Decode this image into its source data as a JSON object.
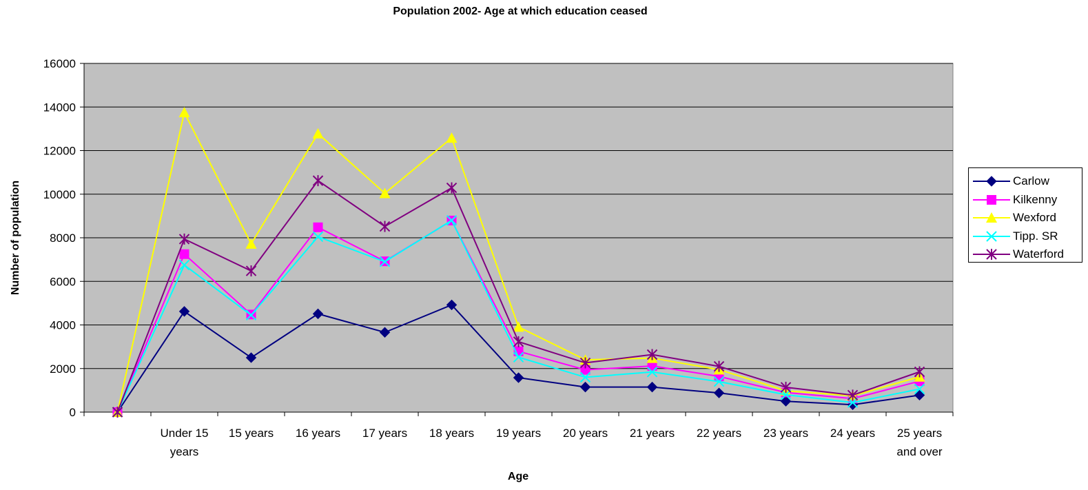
{
  "chart_data": {
    "type": "line",
    "title": "Population 2002- Age at which education ceased",
    "xlabel": "Age",
    "ylabel": "Number of population",
    "ylim": [
      0,
      16000
    ],
    "yticks": [
      "0",
      "2000",
      "4000",
      "6000",
      "8000",
      "10000",
      "12000",
      "14000",
      "16000"
    ],
    "grid": true,
    "legend_position": "right",
    "plot_background": "#c0c0c0",
    "categories": [
      "",
      "Under 15 years",
      "15 years",
      "16 years",
      "17 years",
      "18 years",
      "19 years",
      "20 years",
      "21 years",
      "22 years",
      "23 years",
      "24 years",
      "25 years and over"
    ],
    "category_lines": [
      [
        ""
      ],
      [
        "Under 15",
        "years"
      ],
      [
        "15 years"
      ],
      [
        "16 years"
      ],
      [
        "17 years"
      ],
      [
        "18 years"
      ],
      [
        "19 years"
      ],
      [
        "20 years"
      ],
      [
        "21 years"
      ],
      [
        "22 years"
      ],
      [
        "23 years"
      ],
      [
        "24 years"
      ],
      [
        "25 years",
        "and over"
      ]
    ],
    "series": [
      {
        "name": "Carlow",
        "color": "#000080",
        "marker": "diamond",
        "values": [
          0,
          4620,
          2500,
          4510,
          3660,
          4920,
          1580,
          1150,
          1150,
          880,
          500,
          340,
          780
        ]
      },
      {
        "name": "Kilkenny",
        "color": "#ff00ff",
        "marker": "square",
        "values": [
          0,
          7250,
          4480,
          8480,
          6920,
          8790,
          2790,
          1940,
          2120,
          1640,
          900,
          620,
          1420
        ]
      },
      {
        "name": "Wexford",
        "color": "#ffff00",
        "marker": "triangle",
        "values": [
          0,
          13750,
          7720,
          12780,
          10040,
          12580,
          3910,
          2400,
          2480,
          1950,
          980,
          750,
          1620
        ]
      },
      {
        "name": "Tipp. SR",
        "color": "#00ffff",
        "marker": "x",
        "values": [
          0,
          6750,
          4450,
          8050,
          6900,
          8800,
          2520,
          1600,
          1840,
          1400,
          800,
          440,
          1060
        ]
      },
      {
        "name": "Waterford",
        "color": "#800080",
        "marker": "star",
        "values": [
          0,
          7940,
          6480,
          10620,
          8520,
          10290,
          3230,
          2260,
          2640,
          2100,
          1140,
          780,
          1850
        ]
      }
    ]
  }
}
